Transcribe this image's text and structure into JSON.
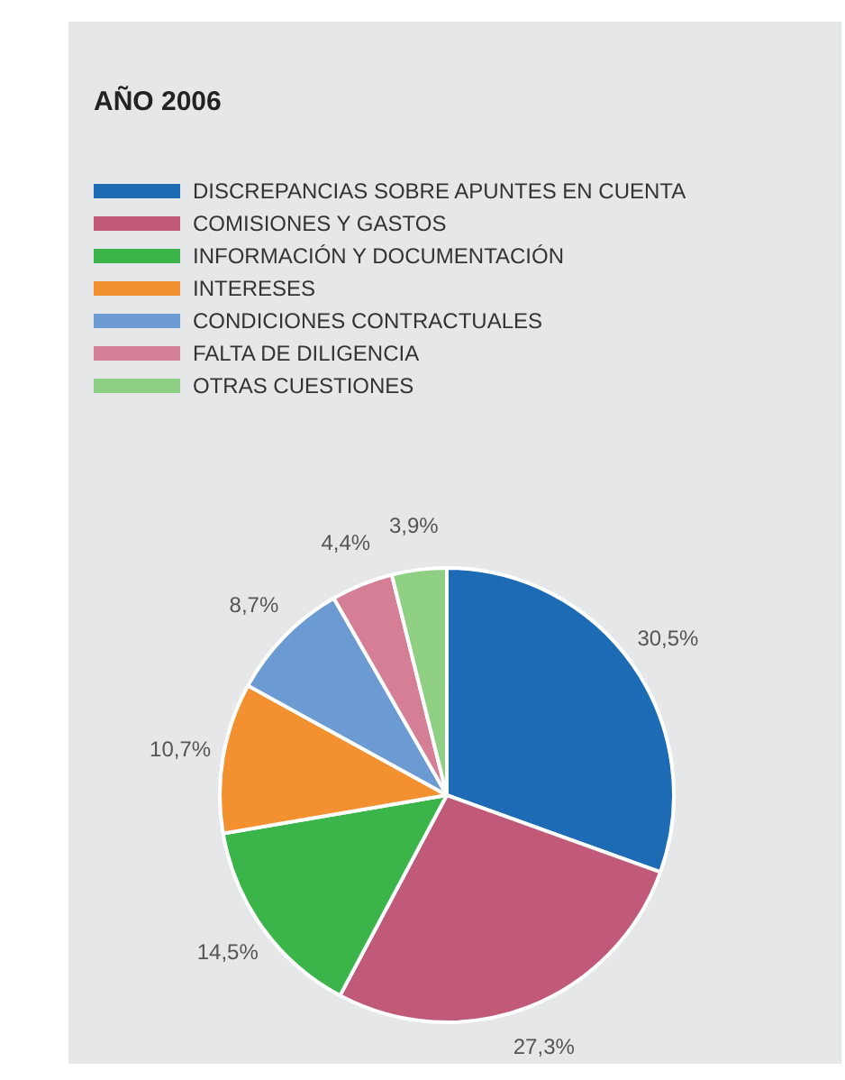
{
  "chart_data": {
    "type": "pie",
    "title": "AÑO 2006",
    "categories": [
      "DISCREPANCIAS SOBRE APUNTES EN CUENTA",
      "COMISIONES Y GASTOS",
      "INFORMACIÓN Y DOCUMENTACIÓN",
      "INTERESES",
      "CONDICIONES CONTRACTUALES",
      "FALTA DE DILIGENCIA",
      "OTRAS CUESTIONES"
    ],
    "values": [
      30.5,
      27.3,
      14.5,
      10.7,
      8.7,
      4.4,
      3.9
    ],
    "colors": [
      "#1d6bb5",
      "#c05a78",
      "#3bb44a",
      "#f39130",
      "#6b9bd2",
      "#d47f96",
      "#8fcf84"
    ],
    "value_labels": [
      "30,5%",
      "27,3%",
      "14,5%",
      "10,7%",
      "8,7%",
      "4,4%",
      "3,9%"
    ],
    "legend": "top left"
  }
}
